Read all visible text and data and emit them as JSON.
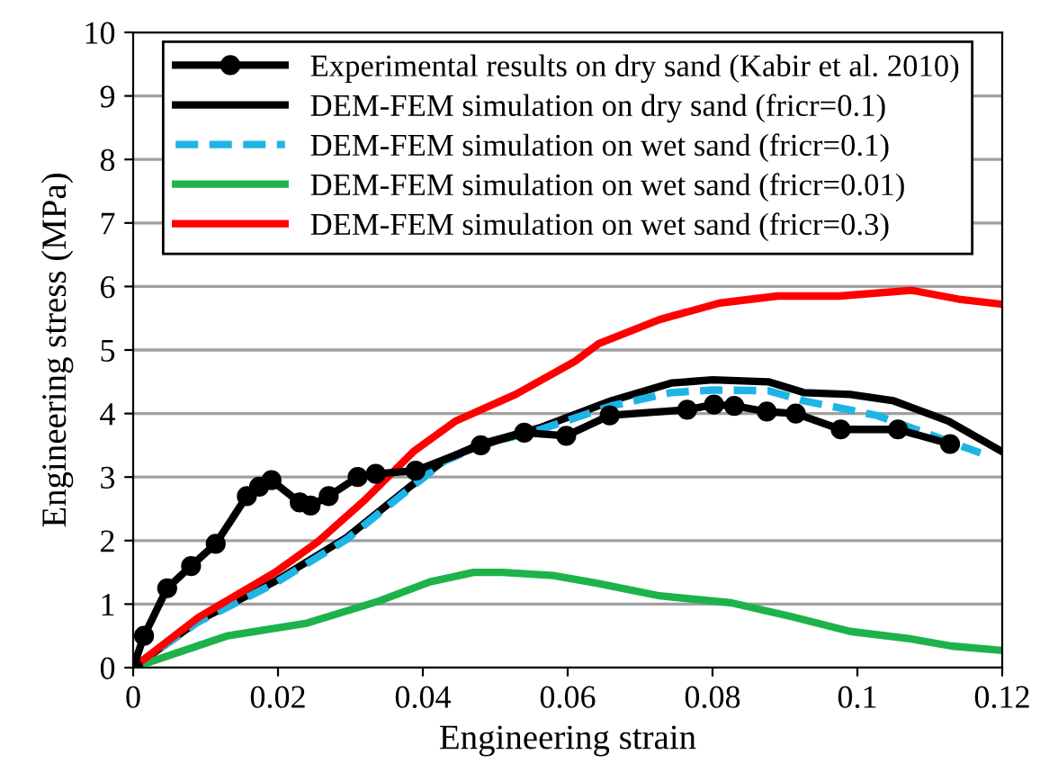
{
  "chart_data": {
    "type": "line",
    "xlabel": "Engineering strain",
    "ylabel": "Engineering stress (MPa)",
    "xlim": [
      0,
      0.12
    ],
    "ylim": [
      0,
      10
    ],
    "xticks": [
      0,
      0.02,
      0.04,
      0.06,
      0.08,
      0.1,
      0.12
    ],
    "yticks": [
      0,
      1,
      2,
      3,
      4,
      5,
      6,
      7,
      8,
      9,
      10
    ],
    "grid": "y",
    "legend": "top",
    "series": [
      {
        "name": "Experimental results on dry sand (Kabir et al. 2010)",
        "color": "#000000",
        "marker": "circle",
        "line_style": "solid",
        "x": [
          0,
          0.0015,
          0.0047,
          0.008,
          0.0114,
          0.0157,
          0.0174,
          0.0191,
          0.023,
          0.0245,
          0.027,
          0.031,
          0.0335,
          0.039,
          0.048,
          0.054,
          0.0598,
          0.0658,
          0.0765,
          0.0802,
          0.083,
          0.0875,
          0.0915,
          0.0977,
          0.1056,
          0.1128
        ],
        "values": [
          0,
          0.5,
          1.25,
          1.6,
          1.95,
          2.7,
          2.85,
          2.95,
          2.6,
          2.55,
          2.7,
          3.0,
          3.05,
          3.1,
          3.5,
          3.7,
          3.65,
          3.97,
          4.06,
          4.14,
          4.12,
          4.03,
          4.0,
          3.75,
          3.75,
          3.52
        ]
      },
      {
        "name": "DEM-FEM simulation on dry sand (fricr=0.1)",
        "color": "#000000",
        "marker": "none",
        "line_style": "solid",
        "x": [
          0,
          0.009,
          0.0196,
          0.0295,
          0.038,
          0.043,
          0.048,
          0.056,
          0.066,
          0.0743,
          0.08,
          0.0877,
          0.0926,
          0.099,
          0.105,
          0.1126,
          0.12
        ],
        "values": [
          0,
          0.74,
          1.36,
          2.05,
          2.83,
          3.27,
          3.52,
          3.77,
          4.2,
          4.48,
          4.53,
          4.5,
          4.33,
          4.3,
          4.2,
          3.88,
          3.4
        ]
      },
      {
        "name": "DEM-FEM simulation on wet sand (fricr=0.1)",
        "color": "#1fb4e6",
        "marker": "none",
        "line_style": "dashed",
        "x": [
          0,
          0.009,
          0.0196,
          0.0295,
          0.038,
          0.043,
          0.048,
          0.056,
          0.066,
          0.0743,
          0.08,
          0.0877,
          0.0926,
          0.1027,
          0.117
        ],
        "values": [
          0,
          0.72,
          1.33,
          2.02,
          2.8,
          3.25,
          3.5,
          3.74,
          4.12,
          4.33,
          4.37,
          4.36,
          4.2,
          3.97,
          3.38
        ]
      },
      {
        "name": "DEM-FEM simulation on wet sand (fricr=0.01)",
        "color": "#1db34a",
        "marker": "none",
        "line_style": "solid",
        "x": [
          0,
          0.013,
          0.024,
          0.034,
          0.041,
          0.047,
          0.051,
          0.058,
          0.064,
          0.0727,
          0.0826,
          0.091,
          0.099,
          0.1075,
          0.113,
          0.12
        ],
        "values": [
          0,
          0.5,
          0.7,
          1.05,
          1.35,
          1.5,
          1.5,
          1.45,
          1.33,
          1.13,
          1.02,
          0.8,
          0.57,
          0.45,
          0.34,
          0.27
        ]
      },
      {
        "name": "DEM-FEM simulation on wet sand (fricr=0.3)",
        "color": "#ff0000",
        "marker": "none",
        "line_style": "solid",
        "x": [
          0,
          0.009,
          0.0196,
          0.0255,
          0.032,
          0.0387,
          0.0445,
          0.0528,
          0.061,
          0.0643,
          0.0727,
          0.081,
          0.089,
          0.0975,
          0.1075,
          0.114,
          0.12
        ],
        "values": [
          0,
          0.79,
          1.5,
          1.98,
          2.64,
          3.4,
          3.88,
          4.3,
          4.82,
          5.1,
          5.48,
          5.74,
          5.85,
          5.85,
          5.94,
          5.8,
          5.72
        ]
      }
    ]
  }
}
